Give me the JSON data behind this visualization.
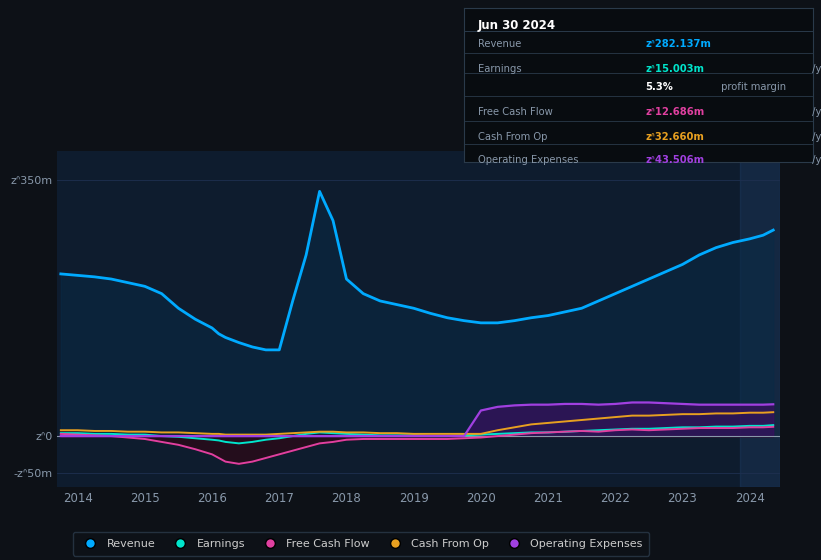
{
  "bg_color": "#0d1117",
  "plot_bg_color": "#0e1c2e",
  "title_box_bg": "#080c10",
  "years": [
    2013.75,
    2014.0,
    2014.25,
    2014.5,
    2014.75,
    2015.0,
    2015.25,
    2015.5,
    2015.75,
    2016.0,
    2016.1,
    2016.2,
    2016.4,
    2016.6,
    2016.8,
    2017.0,
    2017.2,
    2017.4,
    2017.6,
    2017.8,
    2018.0,
    2018.25,
    2018.5,
    2018.75,
    2019.0,
    2019.25,
    2019.5,
    2019.75,
    2020.0,
    2020.25,
    2020.5,
    2020.75,
    2021.0,
    2021.25,
    2021.5,
    2021.75,
    2022.0,
    2022.25,
    2022.5,
    2022.75,
    2023.0,
    2023.25,
    2023.5,
    2023.75,
    2024.0,
    2024.2,
    2024.35
  ],
  "revenue": [
    222,
    220,
    218,
    215,
    210,
    205,
    195,
    175,
    160,
    148,
    140,
    135,
    128,
    122,
    118,
    118,
    185,
    248,
    335,
    295,
    215,
    195,
    185,
    180,
    175,
    168,
    162,
    158,
    155,
    155,
    158,
    162,
    165,
    170,
    175,
    185,
    195,
    205,
    215,
    225,
    235,
    248,
    258,
    265,
    270,
    275,
    282
  ],
  "earnings": [
    4,
    4,
    3,
    3,
    2,
    2,
    0,
    -1,
    -3,
    -5,
    -6,
    -8,
    -10,
    -8,
    -5,
    -3,
    0,
    3,
    5,
    4,
    3,
    2,
    1,
    1,
    1,
    0,
    0,
    1,
    2,
    3,
    4,
    5,
    5,
    6,
    7,
    8,
    9,
    10,
    10,
    11,
    12,
    12,
    13,
    13,
    14,
    14,
    15
  ],
  "free_cash": [
    3,
    2,
    1,
    0,
    -2,
    -4,
    -8,
    -12,
    -18,
    -25,
    -30,
    -35,
    -38,
    -35,
    -30,
    -25,
    -20,
    -15,
    -10,
    -8,
    -5,
    -4,
    -4,
    -4,
    -4,
    -4,
    -4,
    -3,
    -2,
    0,
    2,
    4,
    5,
    6,
    7,
    6,
    8,
    9,
    8,
    9,
    10,
    11,
    11,
    11,
    12,
    12,
    12.7
  ],
  "cash_op": [
    8,
    8,
    7,
    7,
    6,
    6,
    5,
    5,
    4,
    3,
    3,
    2,
    2,
    2,
    2,
    3,
    4,
    5,
    6,
    6,
    5,
    5,
    4,
    4,
    3,
    3,
    3,
    3,
    3,
    8,
    12,
    16,
    18,
    20,
    22,
    24,
    26,
    28,
    28,
    29,
    30,
    30,
    31,
    31,
    32,
    32,
    32.7
  ],
  "op_exp": [
    0,
    0,
    0,
    0,
    0,
    0,
    0,
    0,
    0,
    0,
    0,
    0,
    0,
    0,
    0,
    0,
    0,
    0,
    0,
    0,
    0,
    0,
    0,
    0,
    0,
    0,
    0,
    0,
    35,
    40,
    42,
    43,
    43,
    44,
    44,
    43,
    44,
    46,
    46,
    45,
    44,
    43,
    43,
    43,
    43,
    43,
    43.5
  ],
  "revenue_color": "#00aaff",
  "earnings_color": "#00e5cc",
  "free_cash_color": "#e040a0",
  "cash_op_color": "#e8a020",
  "op_exp_color": "#a040e0",
  "revenue_fill": "#0a2a45",
  "free_cash_neg_fill": "#2a0a18",
  "op_exp_fill": "#3a1060",
  "ylim": [
    -70,
    390
  ],
  "xlim": [
    2013.7,
    2024.45
  ],
  "ytick_positions": [
    -50,
    0,
    350
  ],
  "ytick_labels": [
    "-zᐢ50m",
    "zᐢ0",
    "zᐢ350m"
  ],
  "xtick_positions": [
    2014,
    2015,
    2016,
    2017,
    2018,
    2019,
    2020,
    2021,
    2022,
    2023,
    2024
  ],
  "xtick_labels": [
    "2014",
    "2015",
    "2016",
    "2017",
    "2018",
    "2019",
    "2020",
    "2021",
    "2022",
    "2023",
    "2024"
  ],
  "infobox": {
    "date": "Jun 30 2024",
    "rows": [
      {
        "label": "Revenue",
        "value": "zᐢ282.137m",
        "value_color": "#00aaff",
        "suffix": " /yr"
      },
      {
        "label": "Earnings",
        "value": "zᐢ15.003m",
        "value_color": "#00e5cc",
        "suffix": " /yr"
      },
      {
        "label": "",
        "value": "5.3%",
        "value_color": "#ffffff",
        "suffix": " profit margin"
      },
      {
        "label": "Free Cash Flow",
        "value": "zᐢ12.686m",
        "value_color": "#e040a0",
        "suffix": " /yr"
      },
      {
        "label": "Cash From Op",
        "value": "zᐢ32.660m",
        "value_color": "#e8a020",
        "suffix": " /yr"
      },
      {
        "label": "Operating Expenses",
        "value": "zᐢ43.506m",
        "value_color": "#a040e0",
        "suffix": " /yr"
      }
    ]
  },
  "legend": [
    {
      "label": "Revenue",
      "color": "#00aaff"
    },
    {
      "label": "Earnings",
      "color": "#00e5cc"
    },
    {
      "label": "Free Cash Flow",
      "color": "#e040a0"
    },
    {
      "label": "Cash From Op",
      "color": "#e8a020"
    },
    {
      "label": "Operating Expenses",
      "color": "#a040e0"
    }
  ]
}
